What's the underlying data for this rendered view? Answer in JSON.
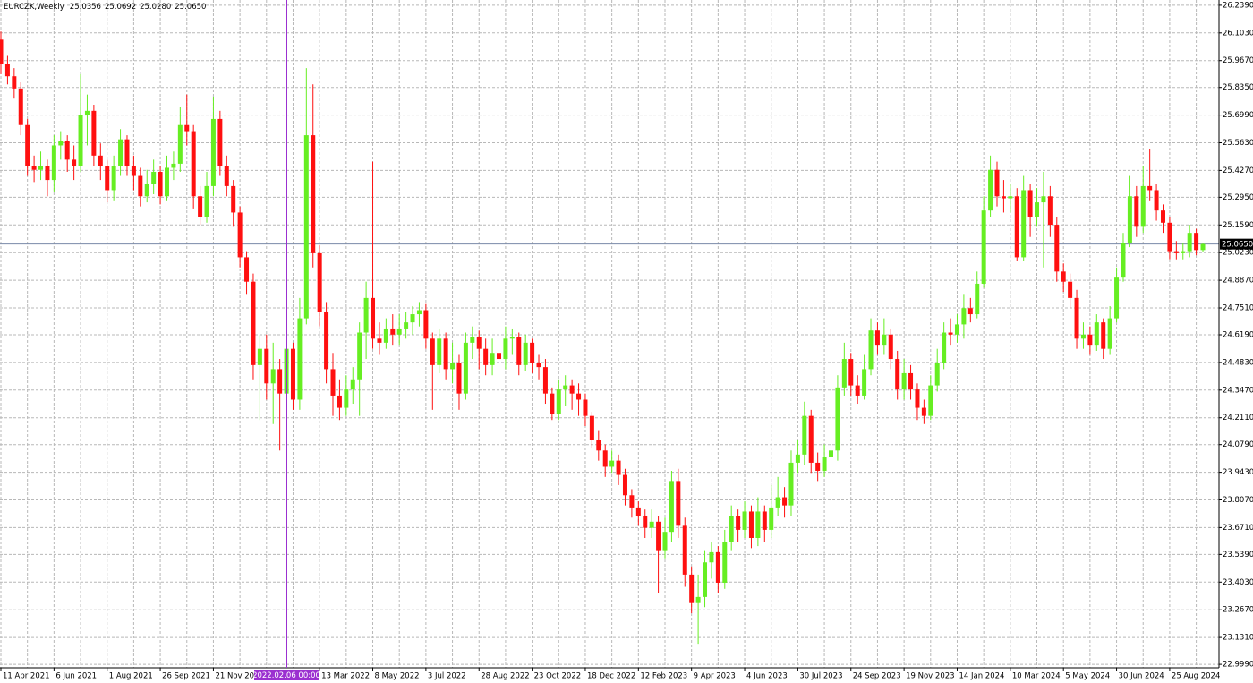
{
  "chart_data": {
    "type": "candlestick",
    "title": "EURCZK,Weekly",
    "last_bar_labels": [
      "25.0356",
      "25.0692",
      "25.0280",
      "25.0650"
    ],
    "crosshair_label": "2022.02.06 00:00",
    "price_label": {
      "value": 25.065,
      "label": "25.0650"
    },
    "bull_color": "#66ee22",
    "bear_color": "#ff1010",
    "grid": true,
    "ylim": [
      22.973,
      26.265
    ],
    "yticks": [
      {
        "value": 26.239,
        "label": "26.2390"
      },
      {
        "value": 26.103,
        "label": "26.1030"
      },
      {
        "value": 25.967,
        "label": "25.9670"
      },
      {
        "value": 25.835,
        "label": "25.8350"
      },
      {
        "value": 25.699,
        "label": "25.6990"
      },
      {
        "value": 25.563,
        "label": "25.5630"
      },
      {
        "value": 25.427,
        "label": "25.4270"
      },
      {
        "value": 25.295,
        "label": "25.2950"
      },
      {
        "value": 25.159,
        "label": "25.1590"
      },
      {
        "value": 25.023,
        "label": "25.0230"
      },
      {
        "value": 24.887,
        "label": "24.8870"
      },
      {
        "value": 24.751,
        "label": "24.7510"
      },
      {
        "value": 24.619,
        "label": "24.6190"
      },
      {
        "value": 24.483,
        "label": "24.4830"
      },
      {
        "value": 24.347,
        "label": "24.3470"
      },
      {
        "value": 24.211,
        "label": "24.2110"
      },
      {
        "value": 24.079,
        "label": "24.0790"
      },
      {
        "value": 23.943,
        "label": "23.9430"
      },
      {
        "value": 23.807,
        "label": "23.8070"
      },
      {
        "value": 23.671,
        "label": "23.6710"
      },
      {
        "value": 23.539,
        "label": "23.5390"
      },
      {
        "value": 23.403,
        "label": "23.4030"
      },
      {
        "value": 23.267,
        "label": "23.2670"
      },
      {
        "value": 23.131,
        "label": "23.1310"
      },
      {
        "value": 22.999,
        "label": "22.9990"
      }
    ],
    "categories": [
      "11 Apr 2021",
      null,
      null,
      null,
      null,
      null,
      null,
      null,
      "6 Jun 2021",
      null,
      null,
      null,
      null,
      null,
      null,
      null,
      "1 Aug 2021",
      null,
      null,
      null,
      null,
      null,
      null,
      null,
      "26 Sep 2021",
      null,
      null,
      null,
      null,
      null,
      null,
      null,
      "21 Nov 2021",
      null,
      null,
      null,
      null,
      null,
      null,
      null,
      null,
      null,
      null,
      null,
      null,
      null,
      null,
      null,
      "13 Mar 2022",
      null,
      null,
      null,
      null,
      null,
      null,
      null,
      "8 May 2022",
      null,
      null,
      null,
      null,
      null,
      null,
      null,
      "3 Jul 2022",
      null,
      null,
      null,
      null,
      null,
      null,
      null,
      "28 Aug 2022",
      null,
      null,
      null,
      null,
      null,
      null,
      null,
      "23 Oct 2022",
      null,
      null,
      null,
      null,
      null,
      null,
      null,
      "18 Dec 2022",
      null,
      null,
      null,
      null,
      null,
      null,
      null,
      "12 Feb 2023",
      null,
      null,
      null,
      null,
      null,
      null,
      null,
      "9 Apr 2023",
      null,
      null,
      null,
      null,
      null,
      null,
      null,
      "4 Jun 2023",
      null,
      null,
      null,
      null,
      null,
      null,
      null,
      "30 Jul 2023",
      null,
      null,
      null,
      null,
      null,
      null,
      null,
      "24 Sep 2023",
      null,
      null,
      null,
      null,
      null,
      null,
      null,
      "19 Nov 2023",
      null,
      null,
      null,
      null,
      null,
      null,
      null,
      "14 Jan 2024",
      null,
      null,
      null,
      null,
      null,
      null,
      null,
      "10 Mar 2024",
      null,
      null,
      null,
      null,
      null,
      null,
      null,
      "5 May 2024",
      null,
      null,
      null,
      null,
      null,
      null,
      null,
      "30 Jun 2024",
      null,
      null,
      null,
      null,
      null,
      null,
      null,
      "25 Aug 2024",
      null,
      null,
      null,
      null,
      null
    ],
    "open": [
      26.07,
      25.95,
      25.89,
      25.83,
      25.65,
      25.45,
      25.43,
      25.45,
      25.38,
      25.55,
      25.57,
      25.48,
      25.45,
      25.7,
      25.72,
      25.5,
      25.45,
      25.33,
      25.45,
      25.58,
      25.45,
      25.4,
      25.3,
      25.36,
      25.42,
      25.3,
      25.44,
      25.46,
      25.65,
      25.62,
      25.3,
      25.2,
      25.35,
      25.68,
      25.45,
      25.35,
      25.22,
      25.0,
      24.88,
      24.47,
      24.55,
      24.38,
      24.45,
      24.33,
      24.55,
      24.3,
      24.7,
      25.6,
      25.02,
      24.73,
      24.45,
      24.32,
      24.26,
      24.35,
      24.4,
      24.63,
      24.8,
      24.6,
      24.58,
      24.65,
      24.62,
      24.65,
      24.68,
      24.72,
      24.74,
      24.6,
      24.47,
      24.6,
      24.45,
      24.48,
      24.33,
      24.58,
      24.61,
      24.55,
      24.47,
      24.53,
      24.5,
      24.6,
      24.61,
      24.47,
      24.58,
      24.48,
      24.46,
      24.33,
      24.23,
      24.35,
      24.37,
      24.33,
      24.3,
      24.22,
      24.1,
      24.05,
      23.97,
      24.0,
      23.93,
      23.83,
      23.77,
      23.73,
      23.67,
      23.7,
      23.56,
      23.65,
      23.9,
      23.68,
      23.44,
      23.3,
      23.33,
      23.5,
      23.55,
      23.4,
      23.6,
      23.73,
      23.66,
      23.75,
      23.62,
      23.75,
      23.66,
      23.77,
      23.82,
      23.78,
      23.99,
      24.03,
      24.22,
      23.99,
      23.95,
      24.02,
      24.05,
      24.36,
      24.5,
      24.37,
      24.32,
      24.45,
      24.64,
      24.57,
      24.62,
      24.5,
      24.35,
      24.43,
      24.35,
      24.26,
      24.22,
      24.37,
      24.48,
      24.63,
      24.62,
      24.67,
      24.75,
      24.72,
      24.87,
      25.23,
      25.43,
      25.3,
      25.29,
      25.3,
      25.0,
      25.33,
      25.2,
      25.27,
      25.3,
      25.16,
      24.93,
      24.88,
      24.8,
      24.6,
      24.62,
      24.57,
      24.68,
      24.55,
      24.7,
      24.9,
      25.07,
      25.3,
      25.15,
      25.35,
      25.33,
      25.23,
      25.17,
      25.03,
      25.02,
      25.03,
      25.12,
      25.0356
    ],
    "high": [
      26.11,
      25.99,
      25.93,
      25.86,
      25.68,
      25.5,
      25.52,
      25.48,
      25.6,
      25.62,
      25.6,
      25.55,
      25.9,
      25.8,
      25.75,
      25.56,
      25.48,
      25.5,
      25.63,
      25.6,
      25.5,
      25.44,
      25.43,
      25.48,
      25.45,
      25.5,
      25.52,
      25.74,
      25.8,
      25.65,
      25.35,
      25.42,
      25.79,
      25.72,
      25.5,
      25.38,
      25.25,
      25.03,
      24.92,
      24.62,
      24.62,
      24.58,
      24.5,
      24.63,
      24.58,
      24.8,
      25.93,
      25.85,
      25.06,
      24.78,
      24.53,
      24.4,
      24.42,
      24.46,
      24.68,
      24.88,
      25.47,
      24.68,
      24.7,
      24.72,
      24.72,
      24.73,
      24.76,
      24.78,
      24.77,
      24.63,
      24.65,
      24.63,
      24.58,
      24.52,
      24.63,
      24.66,
      24.64,
      24.6,
      24.6,
      24.58,
      24.66,
      24.65,
      24.63,
      24.62,
      24.6,
      24.52,
      24.5,
      24.36,
      24.4,
      24.42,
      24.4,
      24.38,
      24.33,
      24.24,
      24.15,
      24.08,
      24.05,
      24.03,
      23.96,
      23.86,
      23.8,
      23.76,
      23.76,
      23.73,
      23.72,
      23.95,
      23.96,
      23.72,
      23.48,
      23.44,
      23.56,
      23.6,
      23.58,
      23.66,
      23.78,
      23.76,
      23.8,
      23.78,
      23.82,
      23.78,
      23.88,
      23.92,
      23.87,
      24.05,
      24.1,
      24.29,
      24.25,
      24.04,
      24.08,
      24.1,
      24.42,
      24.58,
      24.53,
      24.42,
      24.52,
      24.7,
      24.68,
      24.7,
      24.65,
      24.54,
      24.5,
      24.47,
      24.38,
      24.3,
      24.42,
      24.55,
      24.68,
      24.7,
      24.72,
      24.82,
      24.8,
      24.93,
      25.3,
      25.5,
      25.47,
      25.38,
      25.36,
      25.34,
      25.4,
      25.36,
      25.34,
      25.42,
      25.35,
      25.2,
      24.97,
      24.92,
      24.84,
      24.68,
      24.66,
      24.72,
      24.7,
      24.76,
      24.95,
      25.12,
      25.4,
      25.35,
      25.45,
      25.53,
      25.36,
      25.26,
      25.2,
      25.08,
      25.07,
      25.16,
      25.14,
      25.0692
    ],
    "low": [
      25.9,
      25.85,
      25.78,
      25.6,
      25.4,
      25.37,
      25.38,
      25.3,
      25.32,
      25.48,
      25.42,
      25.38,
      25.42,
      25.55,
      25.45,
      25.38,
      25.27,
      25.28,
      25.4,
      25.4,
      25.33,
      25.25,
      25.27,
      25.31,
      25.26,
      25.28,
      25.38,
      25.42,
      25.55,
      25.24,
      25.16,
      25.17,
      25.3,
      25.4,
      25.3,
      25.15,
      24.95,
      24.82,
      24.4,
      24.2,
      24.3,
      24.18,
      24.05,
      24.25,
      24.25,
      24.25,
      24.67,
      24.95,
      24.66,
      24.38,
      24.22,
      24.2,
      24.22,
      24.28,
      24.22,
      24.5,
      24.55,
      24.52,
      24.55,
      24.57,
      24.57,
      24.6,
      24.62,
      24.66,
      24.55,
      24.25,
      24.43,
      24.4,
      24.38,
      24.25,
      24.3,
      24.5,
      24.45,
      24.42,
      24.42,
      24.44,
      24.45,
      24.52,
      24.42,
      24.44,
      24.43,
      24.4,
      24.28,
      24.2,
      24.2,
      24.27,
      24.25,
      24.22,
      24.17,
      24.06,
      24.0,
      23.92,
      23.94,
      23.88,
      23.78,
      23.72,
      23.68,
      23.62,
      23.62,
      23.35,
      23.52,
      23.6,
      23.62,
      23.38,
      23.25,
      23.1,
      23.28,
      23.42,
      23.35,
      23.37,
      23.56,
      23.6,
      23.62,
      23.57,
      23.58,
      23.6,
      23.62,
      23.73,
      23.72,
      23.73,
      23.94,
      23.98,
      23.94,
      23.9,
      23.92,
      23.98,
      24.0,
      24.32,
      24.32,
      24.28,
      24.3,
      24.42,
      24.52,
      24.52,
      24.45,
      24.3,
      24.3,
      24.3,
      24.2,
      24.18,
      24.2,
      24.34,
      24.45,
      24.57,
      24.58,
      24.6,
      24.68,
      24.7,
      24.85,
      25.2,
      25.25,
      25.22,
      25.22,
      24.98,
      24.98,
      25.1,
      25.15,
      24.95,
      25.1,
      24.88,
      24.83,
      24.75,
      24.55,
      24.55,
      24.52,
      24.54,
      24.5,
      24.52,
      24.68,
      24.88,
      25.05,
      25.1,
      25.12,
      25.28,
      25.18,
      25.12,
      24.99,
      24.99,
      24.99,
      25.0,
      25.01,
      25.028
    ],
    "close": [
      25.95,
      25.89,
      25.83,
      25.65,
      25.45,
      25.43,
      25.45,
      25.38,
      25.55,
      25.57,
      25.48,
      25.45,
      25.7,
      25.72,
      25.5,
      25.45,
      25.33,
      25.45,
      25.58,
      25.45,
      25.4,
      25.3,
      25.36,
      25.42,
      25.3,
      25.44,
      25.46,
      25.65,
      25.62,
      25.3,
      25.2,
      25.35,
      25.68,
      25.45,
      25.35,
      25.22,
      25.0,
      24.88,
      24.47,
      24.55,
      24.38,
      24.45,
      24.33,
      24.55,
      24.3,
      24.7,
      25.6,
      25.02,
      24.73,
      24.45,
      24.32,
      24.26,
      24.35,
      24.4,
      24.63,
      24.8,
      24.6,
      24.58,
      24.65,
      24.62,
      24.65,
      24.68,
      24.72,
      24.74,
      24.6,
      24.47,
      24.6,
      24.45,
      24.48,
      24.33,
      24.58,
      24.61,
      24.55,
      24.47,
      24.53,
      24.5,
      24.6,
      24.61,
      24.47,
      24.58,
      24.48,
      24.46,
      24.33,
      24.23,
      24.35,
      24.37,
      24.33,
      24.3,
      24.22,
      24.1,
      24.05,
      23.97,
      24.0,
      23.93,
      23.83,
      23.77,
      23.73,
      23.67,
      23.7,
      23.56,
      23.65,
      23.9,
      23.68,
      23.44,
      23.3,
      23.33,
      23.5,
      23.55,
      23.4,
      23.6,
      23.73,
      23.66,
      23.75,
      23.62,
      23.75,
      23.66,
      23.77,
      23.82,
      23.78,
      23.99,
      24.03,
      24.22,
      23.99,
      23.95,
      24.02,
      24.05,
      24.36,
      24.5,
      24.37,
      24.32,
      24.45,
      24.64,
      24.57,
      24.62,
      24.5,
      24.35,
      24.43,
      24.35,
      24.26,
      24.22,
      24.37,
      24.48,
      24.63,
      24.62,
      24.67,
      24.75,
      24.72,
      24.87,
      25.23,
      25.43,
      25.3,
      25.29,
      25.3,
      25.0,
      25.33,
      25.2,
      25.27,
      25.3,
      25.16,
      24.93,
      24.88,
      24.8,
      24.6,
      24.62,
      24.57,
      24.68,
      24.55,
      24.7,
      24.9,
      25.07,
      25.3,
      25.15,
      25.35,
      25.33,
      25.23,
      25.17,
      25.03,
      25.02,
      25.03,
      25.12,
      25.0356,
      25.065
    ]
  }
}
